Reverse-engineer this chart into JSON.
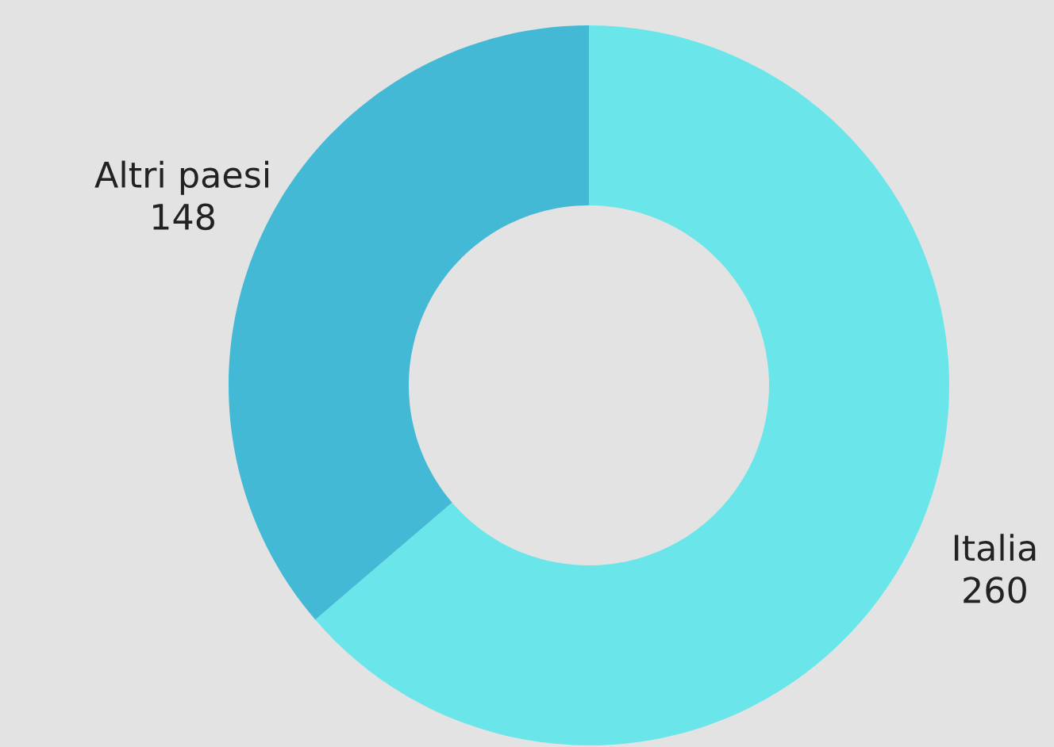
{
  "chart_data": {
    "type": "donut",
    "categories": [
      "Italia",
      "Altri paesi"
    ],
    "values": [
      260,
      148
    ],
    "colors": [
      "#6ae6ea",
      "#44b9d6"
    ],
    "data_labels": true,
    "legend": false
  }
}
